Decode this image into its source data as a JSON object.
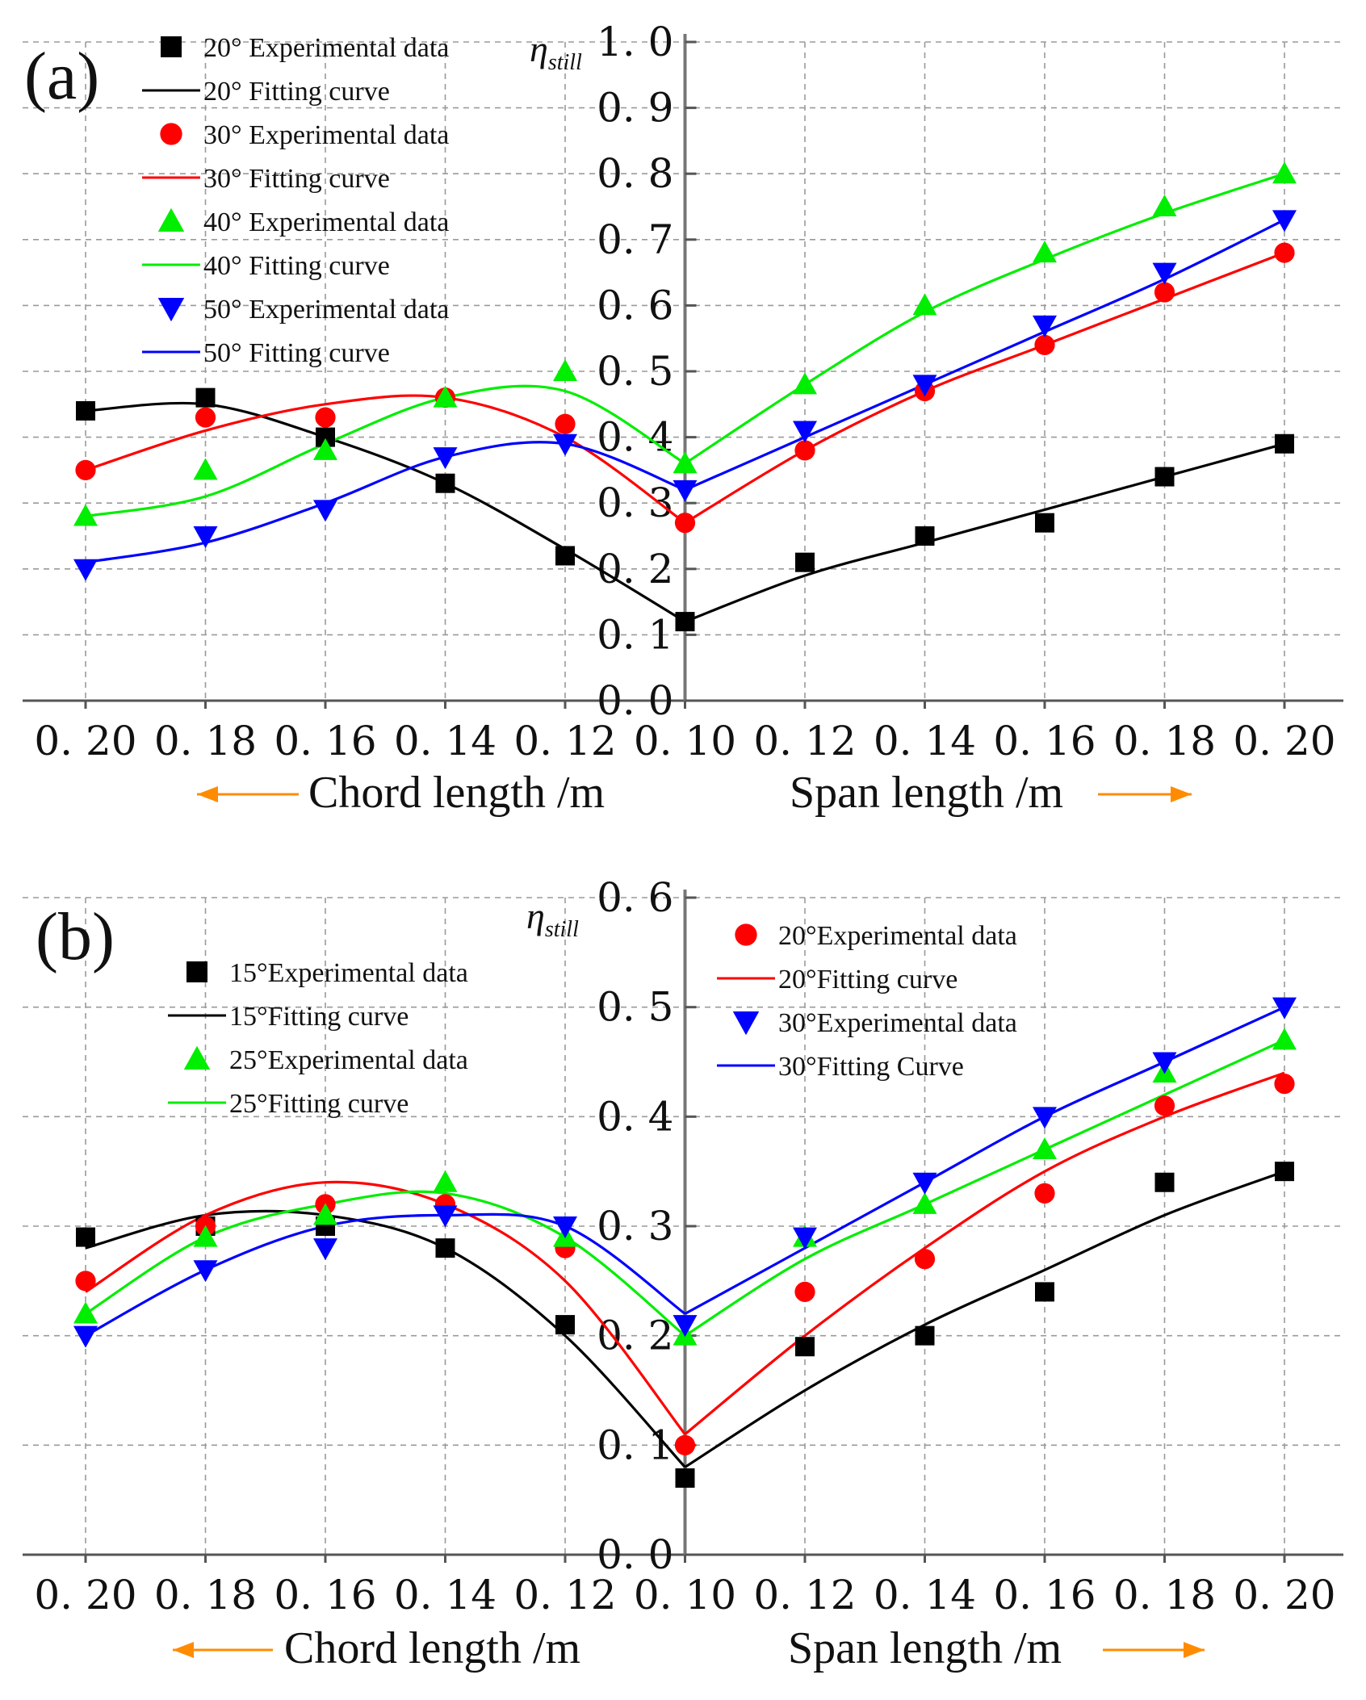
{
  "colors": {
    "black": "#000000",
    "red": "#ff0000",
    "green": "#00ee00",
    "blue": "#0000ff",
    "orange": "#ff8c00"
  },
  "chart_data": [
    {
      "panel": "(a)",
      "type": "scatter",
      "ylabel": "η",
      "ylabel_sub": "still",
      "ylim": [
        0.0,
        1.0
      ],
      "yticks": [
        "0.0",
        "0.1",
        "0.2",
        "0.3",
        "0.4",
        "0.5",
        "0.6",
        "0.7",
        "0.8",
        "0.9",
        "1.0"
      ],
      "xticks": [
        "0. 20",
        "0. 18",
        "0. 16",
        "0. 14",
        "0. 12",
        "0. 10",
        "0. 12",
        "0. 14",
        "0. 16",
        "0. 18",
        "0. 20"
      ],
      "xlabel_left": "Chord length /m",
      "xlabel_right": "Span length /m",
      "grid": true,
      "legend_position": "top-left",
      "series": [
        {
          "name": "20°",
          "color": "black",
          "marker": "square",
          "data_label": "20° Experimental data",
          "fit_label": "20° Fitting curve",
          "values": [
            0.44,
            0.46,
            0.4,
            0.33,
            0.22,
            0.12,
            0.21,
            0.25,
            0.27,
            0.34,
            0.39
          ],
          "fit": [
            0.44,
            0.45,
            0.4,
            0.33,
            0.23,
            0.12,
            0.19,
            0.24,
            0.29,
            0.34,
            0.39
          ]
        },
        {
          "name": "30°",
          "color": "red",
          "marker": "circle",
          "data_label": "30° Experimental data",
          "fit_label": "30° Fitting curve",
          "values": [
            0.35,
            0.43,
            0.43,
            0.46,
            0.42,
            0.27,
            0.38,
            0.47,
            0.54,
            0.62,
            0.68
          ],
          "fit": [
            0.35,
            0.41,
            0.45,
            0.46,
            0.4,
            0.27,
            0.38,
            0.47,
            0.54,
            0.61,
            0.68
          ]
        },
        {
          "name": "40°",
          "color": "green",
          "marker": "triangle-up",
          "data_label": "40° Experimental data",
          "fit_label": "40° Fitting curve",
          "values": [
            0.28,
            0.35,
            0.38,
            0.46,
            0.5,
            0.36,
            0.48,
            0.6,
            0.68,
            0.75,
            0.8
          ],
          "fit": [
            0.28,
            0.31,
            0.39,
            0.46,
            0.47,
            0.36,
            0.48,
            0.59,
            0.67,
            0.74,
            0.8
          ]
        },
        {
          "name": "50°",
          "color": "blue",
          "marker": "triangle-down",
          "data_label": "50° Experimental data",
          "fit_label": "50° Fitting curve",
          "values": [
            0.2,
            0.25,
            0.29,
            0.37,
            0.39,
            0.32,
            0.41,
            0.48,
            0.57,
            0.65,
            0.73
          ],
          "fit": [
            0.21,
            0.24,
            0.3,
            0.37,
            0.39,
            0.32,
            0.4,
            0.48,
            0.56,
            0.64,
            0.73
          ]
        }
      ]
    },
    {
      "panel": "(b)",
      "type": "scatter",
      "ylabel": "η",
      "ylabel_sub": "still",
      "ylim": [
        0.0,
        0.6
      ],
      "yticks": [
        "0.0",
        "0.1",
        "0.2",
        "0.3",
        "0.4",
        "0.5",
        "0.6"
      ],
      "xticks": [
        "0. 20",
        "0. 18",
        "0. 16",
        "0. 14",
        "0. 12",
        "0. 10",
        "0. 12",
        "0. 14",
        "0. 16",
        "0. 18",
        "0. 20"
      ],
      "xlabel_left": "Chord length /m",
      "xlabel_right": "Span length /m",
      "grid": true,
      "legend_position": "top-left and top-right",
      "series": [
        {
          "name": "15°",
          "color": "black",
          "marker": "square",
          "data_label": "15°Experimental data",
          "fit_label": "15°Fitting curve",
          "values": [
            0.29,
            0.3,
            0.3,
            0.28,
            0.21,
            0.07,
            0.19,
            0.2,
            0.24,
            0.34,
            0.35
          ],
          "fit": [
            0.28,
            0.31,
            0.31,
            0.28,
            0.2,
            0.08,
            0.15,
            0.21,
            0.26,
            0.31,
            0.35
          ]
        },
        {
          "name": "20°",
          "color": "red",
          "marker": "circle",
          "data_label": "20°Experimental data",
          "fit_label": "20°Fitting curve",
          "values": [
            0.25,
            0.3,
            0.32,
            0.32,
            0.28,
            0.1,
            0.24,
            0.27,
            0.33,
            0.41,
            0.43
          ],
          "fit": [
            0.24,
            0.31,
            0.34,
            0.32,
            0.25,
            0.11,
            0.2,
            0.28,
            0.35,
            0.4,
            0.44
          ]
        },
        {
          "name": "25°",
          "color": "green",
          "marker": "triangle-up",
          "data_label": "25°Experimental data",
          "fit_label": "25°Fitting curve",
          "values": [
            0.22,
            0.29,
            0.31,
            0.34,
            0.29,
            0.2,
            0.29,
            0.32,
            0.37,
            0.44,
            0.47
          ],
          "fit": [
            0.22,
            0.29,
            0.32,
            0.33,
            0.29,
            0.2,
            0.27,
            0.32,
            0.37,
            0.42,
            0.47
          ]
        },
        {
          "name": "30°",
          "color": "blue",
          "marker": "triangle-down",
          "data_label": "30°Experimental data",
          "fit_label": "30°Fitting Curve",
          "values": [
            0.2,
            0.26,
            0.28,
            0.31,
            0.3,
            0.21,
            0.29,
            0.34,
            0.4,
            0.45,
            0.5
          ],
          "fit": [
            0.2,
            0.26,
            0.3,
            0.31,
            0.3,
            0.22,
            0.28,
            0.34,
            0.4,
            0.45,
            0.5
          ]
        }
      ]
    }
  ]
}
